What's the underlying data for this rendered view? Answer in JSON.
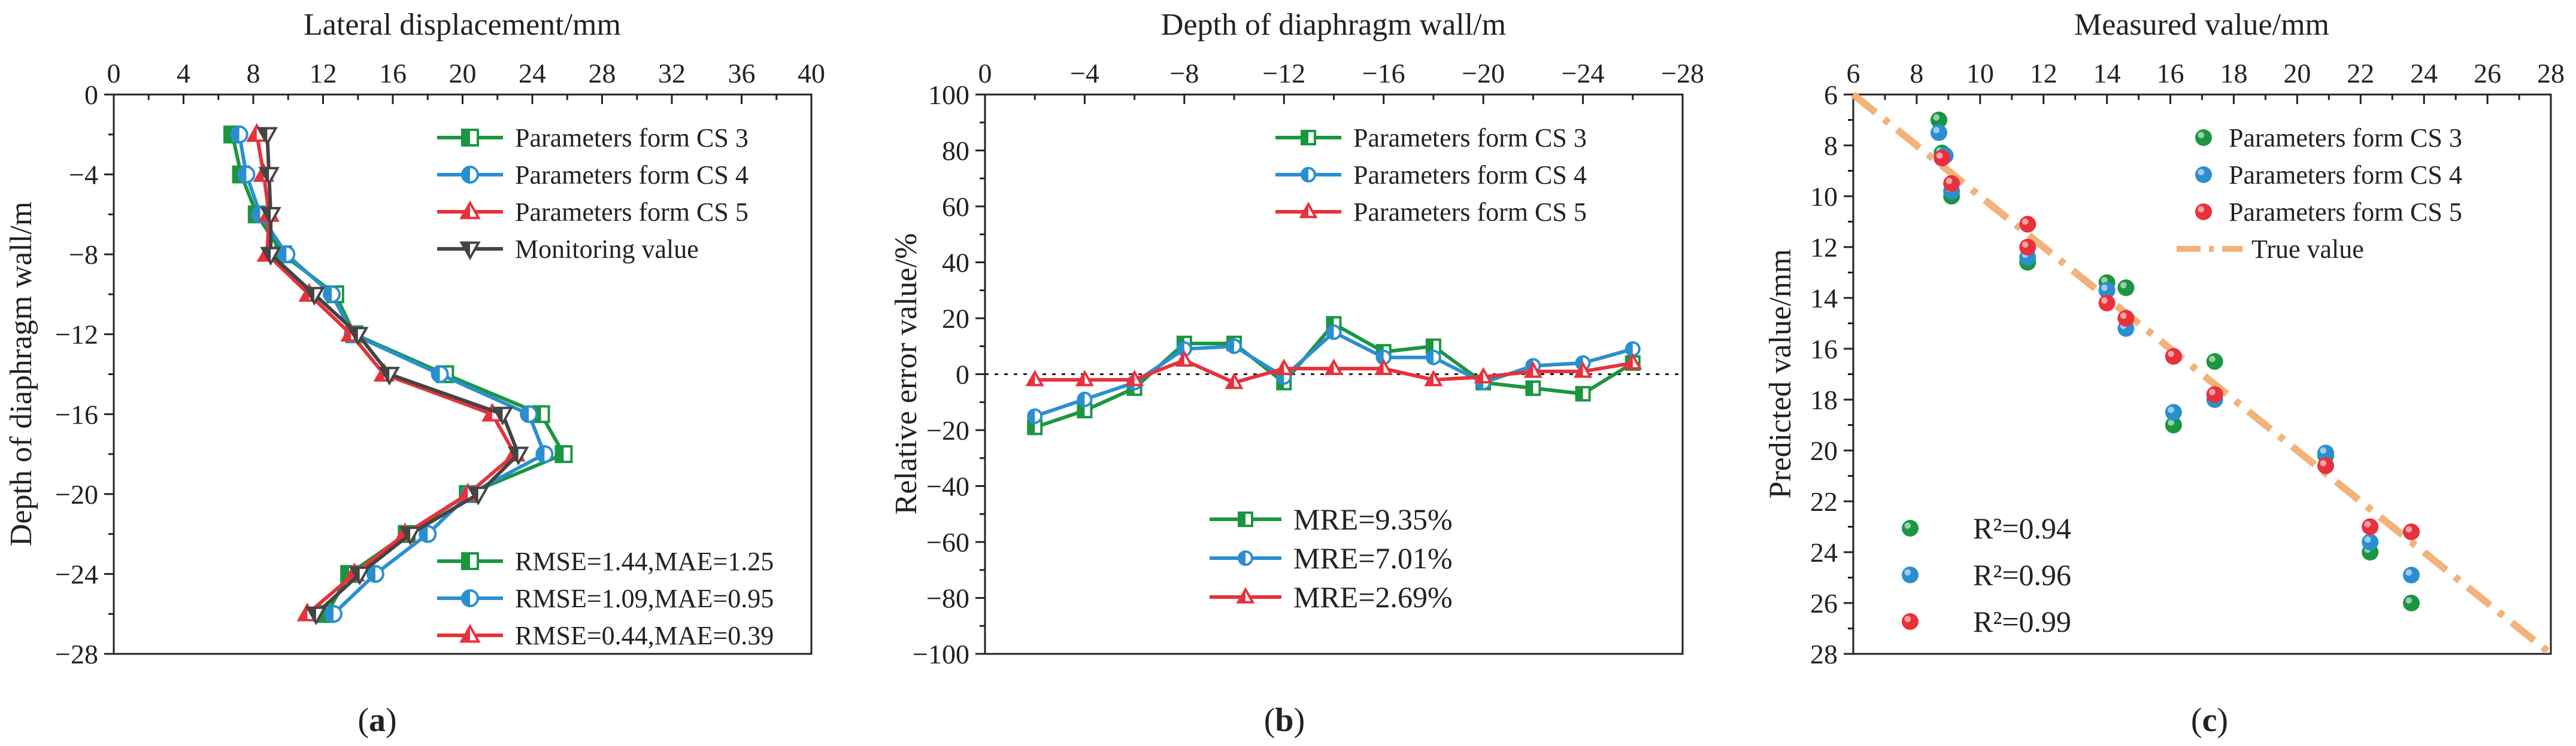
{
  "chart_data": [
    {
      "id": "a",
      "type": "line",
      "panel_label": "a",
      "title": "Lateral displacement/mm",
      "xlabel": "Lateral displacement/mm",
      "ylabel": "Depth of diaphragm wall/m",
      "xlim": [
        0,
        40
      ],
      "ylim": [
        -28,
        0
      ],
      "xticks": [
        0,
        4,
        8,
        12,
        16,
        20,
        24,
        28,
        32,
        36,
        40
      ],
      "yticks": [
        0,
        -4,
        -8,
        -12,
        -16,
        -20,
        -24,
        -28
      ],
      "xtick_labels": [
        "0",
        "4",
        "8",
        "12",
        "16",
        "20",
        "24",
        "28",
        "32",
        "36",
        "40"
      ],
      "ytick_labels": [
        "0",
        "−4",
        "−8",
        "−12",
        "−16",
        "−20",
        "−24",
        "−28"
      ],
      "series": [
        {
          "name": "Parameters form CS 3",
          "color": "#1a9641",
          "marker": "square",
          "points": [
            [
              6.8,
              -2
            ],
            [
              7.3,
              -4
            ],
            [
              8.2,
              -6
            ],
            [
              9.7,
              -8
            ],
            [
              12.7,
              -10
            ],
            [
              13.8,
              -12
            ],
            [
              19.0,
              -14
            ],
            [
              24.5,
              -16
            ],
            [
              25.8,
              -18
            ],
            [
              20.3,
              -20
            ],
            [
              16.8,
              -22
            ],
            [
              13.5,
              -24
            ],
            [
              12.2,
              -26
            ]
          ]
        },
        {
          "name": "Parameters form CS 4",
          "color": "#2a8fd0",
          "marker": "circle",
          "points": [
            [
              7.2,
              -2
            ],
            [
              7.6,
              -4
            ],
            [
              8.4,
              -6
            ],
            [
              9.9,
              -8
            ],
            [
              12.5,
              -10
            ],
            [
              13.7,
              -12
            ],
            [
              18.7,
              -14
            ],
            [
              23.8,
              -16
            ],
            [
              24.7,
              -18
            ],
            [
              20.4,
              -20
            ],
            [
              18.0,
              -22
            ],
            [
              15.0,
              -24
            ],
            [
              12.6,
              -26
            ]
          ]
        },
        {
          "name": "Parameters form CS 5",
          "color": "#e8313b",
          "marker": "triangle",
          "points": [
            [
              8.2,
              -2
            ],
            [
              8.6,
              -4
            ],
            [
              8.9,
              -6
            ],
            [
              8.8,
              -8
            ],
            [
              11.2,
              -10
            ],
            [
              13.6,
              -12
            ],
            [
              15.5,
              -14
            ],
            [
              21.7,
              -16
            ],
            [
              23.0,
              -18
            ],
            [
              20.3,
              -20
            ],
            [
              16.7,
              -22
            ],
            [
              13.8,
              -24
            ],
            [
              11.1,
              -26
            ]
          ]
        },
        {
          "name": "Monitoring value",
          "color": "#444444",
          "marker": "triangle-down",
          "points": [
            [
              8.8,
              -2
            ],
            [
              8.9,
              -4
            ],
            [
              9.0,
              -6
            ],
            [
              9.0,
              -8
            ],
            [
              11.5,
              -10
            ],
            [
              14.0,
              -12
            ],
            [
              15.8,
              -14
            ],
            [
              22.3,
              -16
            ],
            [
              23.2,
              -18
            ],
            [
              20.9,
              -20
            ],
            [
              17.0,
              -22
            ],
            [
              14.1,
              -24
            ],
            [
              11.6,
              -26
            ]
          ]
        }
      ],
      "annotations": [
        "RMSE=1.44,MAE=1.25",
        "RMSE=1.09,MAE=0.95",
        "RMSE=0.44,MAE=0.39"
      ]
    },
    {
      "id": "b",
      "type": "line",
      "panel_label": "b",
      "title": "Depth of diaphragm wall/m",
      "xlabel": "Depth of diaphragm wall/m",
      "ylabel": "Relative error value/%",
      "xlim": [
        0,
        -28
      ],
      "ylim": [
        -100,
        100
      ],
      "xticks": [
        0,
        -4,
        -8,
        -12,
        -16,
        -20,
        -24,
        -28
      ],
      "yticks": [
        100,
        80,
        60,
        40,
        20,
        0,
        -20,
        -40,
        -60,
        -80,
        -100
      ],
      "xtick_labels": [
        "0",
        "−4",
        "−8",
        "−12",
        "−16",
        "−20",
        "−24",
        "−28"
      ],
      "ytick_labels": [
        "100",
        "80",
        "60",
        "40",
        "20",
        "0",
        "−20",
        "−40",
        "−60",
        "−80",
        "−100"
      ],
      "x": [
        -2,
        -4,
        -6,
        -8,
        -10,
        -12,
        -14,
        -16,
        -18,
        -20,
        -22,
        -24,
        -26
      ],
      "series": [
        {
          "name": "Parameters form CS 3",
          "color": "#1a9641",
          "marker": "square",
          "values": [
            -19,
            -13,
            -5,
            11,
            11,
            -3,
            18,
            8,
            10,
            -3,
            -5,
            -7,
            4
          ]
        },
        {
          "name": "Parameters form CS 4",
          "color": "#2a8fd0",
          "marker": "circle",
          "values": [
            -15,
            -9,
            -3,
            9,
            10,
            -1,
            15,
            6,
            6,
            -3,
            3,
            4,
            9
          ]
        },
        {
          "name": "Parameters form CS 5",
          "color": "#e8313b",
          "marker": "triangle",
          "values": [
            -2,
            -2,
            -2,
            5,
            -3,
            2,
            2,
            2,
            -2,
            -1,
            1,
            1,
            4
          ]
        }
      ],
      "zero_line": 0,
      "annotations": [
        "MRE=9.35%",
        "MRE=7.01%",
        "MRE=2.69%"
      ]
    },
    {
      "id": "c",
      "type": "scatter",
      "panel_label": "c",
      "title": "Measured value/mm",
      "xlabel": "Measured value/mm",
      "ylabel": "Predicted value/mm",
      "xlim": [
        6,
        28
      ],
      "ylim": [
        6,
        28
      ],
      "xticks": [
        6,
        8,
        10,
        12,
        14,
        16,
        18,
        20,
        22,
        24,
        26,
        28
      ],
      "yticks": [
        6,
        8,
        10,
        12,
        14,
        16,
        18,
        20,
        22,
        24,
        26,
        28
      ],
      "xtick_labels": [
        "6",
        "8",
        "10",
        "12",
        "14",
        "16",
        "18",
        "20",
        "22",
        "24",
        "26",
        "28"
      ],
      "ytick_labels": [
        "6",
        "8",
        "10",
        "12",
        "14",
        "16",
        "18",
        "20",
        "22",
        "24",
        "26",
        "28"
      ],
      "series": [
        {
          "name": "Parameters form CS 3",
          "color": "#1a9641",
          "points": [
            [
              8.7,
              7.0
            ],
            [
              8.8,
              8.3
            ],
            [
              9.1,
              10.0
            ],
            [
              11.5,
              12.6
            ],
            [
              14.0,
              13.4
            ],
            [
              14.6,
              13.6
            ],
            [
              16.1,
              19.0
            ],
            [
              17.4,
              16.5
            ],
            [
              20.9,
              20.2
            ],
            [
              22.3,
              24.0
            ],
            [
              23.6,
              26.0
            ]
          ]
        },
        {
          "name": "Parameters form CS 4",
          "color": "#2a8fd0",
          "points": [
            [
              8.7,
              7.5
            ],
            [
              8.9,
              8.4
            ],
            [
              9.1,
              9.8
            ],
            [
              11.5,
              12.4
            ],
            [
              14.0,
              13.7
            ],
            [
              14.6,
              15.2
            ],
            [
              16.1,
              18.5
            ],
            [
              17.4,
              18.0
            ],
            [
              20.9,
              20.1
            ],
            [
              22.3,
              23.6
            ],
            [
              23.6,
              24.9
            ]
          ]
        },
        {
          "name": "Parameters form CS 5",
          "color": "#e8313b",
          "points": [
            [
              8.8,
              8.5
            ],
            [
              9.1,
              9.5
            ],
            [
              11.5,
              11.1
            ],
            [
              11.5,
              12.0
            ],
            [
              14.0,
              14.2
            ],
            [
              14.6,
              14.8
            ],
            [
              16.1,
              16.3
            ],
            [
              17.4,
              17.8
            ],
            [
              20.9,
              20.6
            ],
            [
              22.3,
              23.0
            ],
            [
              23.6,
              23.2
            ]
          ]
        }
      ],
      "reference_line": {
        "name": "True value",
        "color": "#f2b27a",
        "style": "dash-dot"
      },
      "annotations": [
        "R²=0.94",
        "R²=0.96",
        "R²=0.99"
      ]
    }
  ]
}
